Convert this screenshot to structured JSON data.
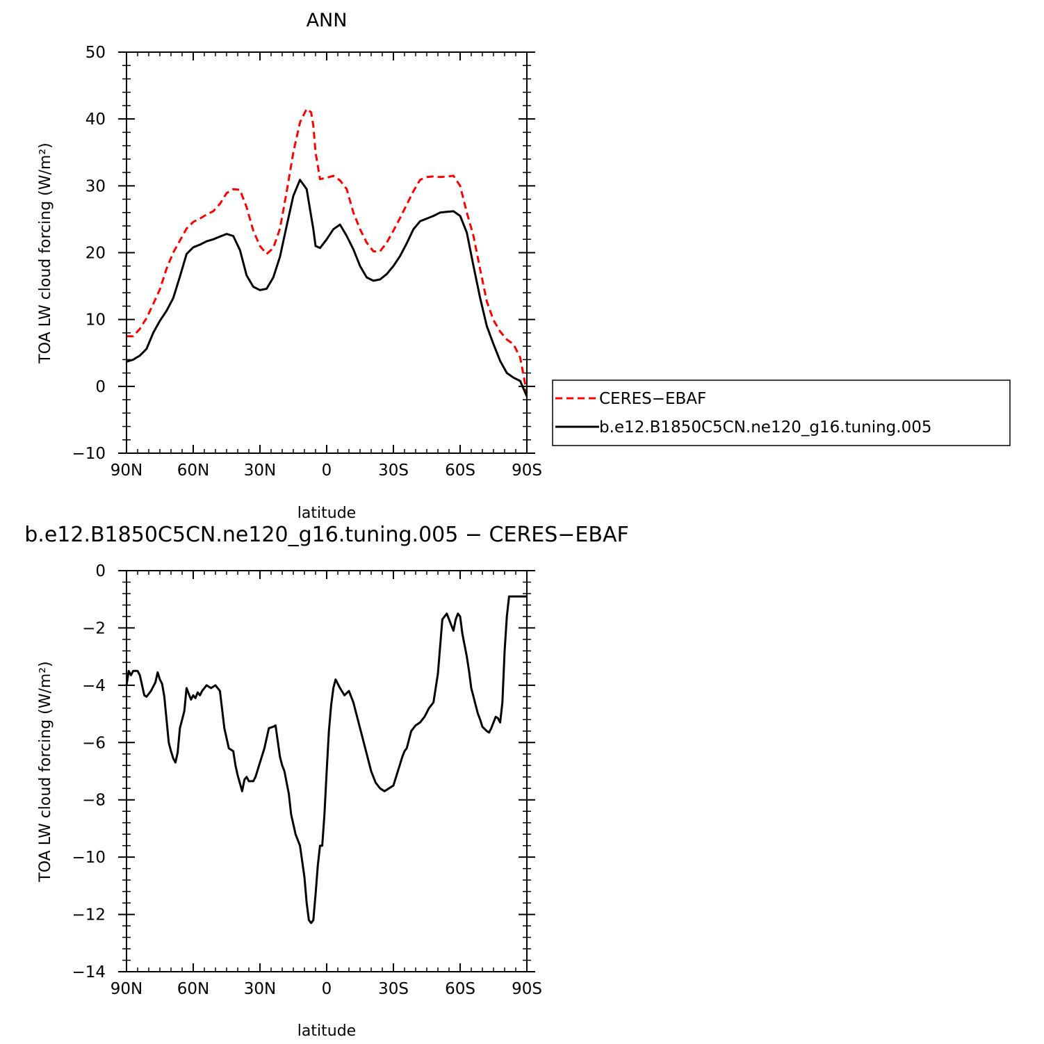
{
  "chart_data": [
    {
      "type": "line",
      "title": "ANN",
      "xlabel": "latitude",
      "ylabel": "TOA LW cloud forcing (W/m²)",
      "xlim": [
        90,
        -90
      ],
      "ylim": [
        -10,
        50
      ],
      "x_tick_labels": [
        "90N",
        "60N",
        "30N",
        "0",
        "30S",
        "60S",
        "90S"
      ],
      "y_tick_labels": [
        "−10",
        "0",
        "10",
        "20",
        "30",
        "40",
        "50"
      ],
      "grid": false,
      "legend": "right",
      "series": [
        {
          "name": "CERES−EBAF",
          "color": "#ff0000",
          "dash": "dashed",
          "x": [
            90,
            87,
            84,
            81,
            78,
            75,
            72,
            69,
            66,
            63,
            60,
            57,
            54,
            51,
            48,
            45,
            42,
            39,
            36,
            33,
            30,
            27,
            24,
            21,
            18,
            15,
            12,
            9,
            7,
            6,
            5,
            3,
            0,
            -3,
            -6,
            -9,
            -12,
            -15,
            -18,
            -21,
            -24,
            -27,
            -30,
            -33,
            -36,
            -39,
            -42,
            -45,
            -48,
            -51,
            -54,
            -57,
            -60,
            -63,
            -66,
            -69,
            -72,
            -75,
            -78,
            -81,
            -84,
            -87,
            -90
          ],
          "y": [
            7.5,
            7.5,
            8.6,
            10.2,
            12.3,
            14.5,
            17.6,
            20.0,
            21.8,
            23.6,
            24.6,
            25.1,
            25.7,
            26.2,
            27.3,
            28.9,
            29.5,
            29.4,
            26.8,
            23.3,
            21.0,
            19.8,
            20.7,
            23.6,
            29.1,
            35.0,
            39.5,
            41.5,
            41.0,
            39.0,
            35.0,
            31.0,
            31.2,
            31.5,
            30.8,
            29.5,
            26.0,
            23.5,
            21.5,
            20.2,
            20.2,
            21.5,
            23.3,
            25.2,
            27.2,
            29.2,
            30.9,
            31.3,
            31.4,
            31.3,
            31.4,
            31.5,
            30.0,
            26.0,
            22.5,
            17.5,
            12.7,
            9.9,
            8.2,
            7.0,
            6.3,
            4.3,
            -1.0
          ]
        },
        {
          "name": "b.e12.B1850C5CN.ne120_g16.tuning.005",
          "color": "#000000",
          "dash": "solid",
          "x": [
            90,
            87,
            84,
            81,
            78,
            75,
            72,
            69,
            66,
            63,
            60,
            57,
            54,
            51,
            48,
            45,
            42,
            39,
            36,
            33,
            30,
            27,
            24,
            21,
            18,
            15,
            12,
            9,
            7,
            6,
            5,
            3,
            0,
            -3,
            -6,
            -9,
            -12,
            -15,
            -18,
            -21,
            -24,
            -27,
            -30,
            -33,
            -36,
            -39,
            -42,
            -45,
            -48,
            -51,
            -54,
            -57,
            -60,
            -63,
            -66,
            -69,
            -72,
            -75,
            -78,
            -81,
            -84,
            -87,
            -90
          ],
          "y": [
            3.7,
            4.0,
            4.6,
            5.6,
            8.0,
            9.8,
            11.3,
            13.2,
            16.4,
            19.8,
            20.8,
            21.2,
            21.7,
            22.0,
            22.4,
            22.8,
            22.5,
            20.4,
            16.6,
            14.9,
            14.4,
            14.6,
            16.3,
            19.4,
            24.0,
            28.5,
            30.9,
            29.5,
            25.5,
            23.5,
            21.0,
            20.7,
            22.0,
            23.5,
            24.2,
            22.5,
            20.5,
            18.0,
            16.3,
            15.8,
            16.0,
            16.8,
            18.0,
            19.5,
            21.4,
            23.5,
            24.7,
            25.1,
            25.5,
            26.0,
            26.1,
            26.2,
            25.5,
            23.0,
            18.0,
            13.2,
            9.0,
            6.3,
            3.8,
            2.0,
            1.3,
            0.8,
            -1.5
          ]
        }
      ]
    },
    {
      "type": "line",
      "title": "b.e12.B1850C5CN.ne120_g16.tuning.005 − CERES−EBAF",
      "xlabel": "latitude",
      "ylabel": "TOA LW cloud forcing (W/m²)",
      "xlim": [
        90,
        -90
      ],
      "ylim": [
        -14,
        0
      ],
      "x_tick_labels": [
        "90N",
        "60N",
        "30N",
        "0",
        "30S",
        "60S",
        "90S"
      ],
      "y_tick_labels": [
        "−14",
        "−12",
        "−10",
        "−8",
        "−6",
        "−4",
        "−2",
        "0"
      ],
      "grid": false,
      "series": [
        {
          "color": "#000000",
          "dash": "solid",
          "x": [
            90,
            89,
            88,
            87,
            86,
            85,
            84,
            82,
            81,
            79,
            77,
            76,
            75,
            74,
            73,
            71,
            70,
            69,
            68,
            67,
            66,
            64,
            63,
            61,
            60,
            59,
            58,
            57,
            56,
            54,
            52,
            50,
            48,
            46,
            44,
            42,
            41,
            40,
            38,
            37,
            36,
            35,
            33,
            32,
            30,
            28,
            26,
            24,
            23,
            21,
            20,
            19,
            17,
            16,
            14,
            12,
            10,
            9,
            8,
            7,
            6,
            5,
            4,
            3,
            2,
            1,
            0,
            -1,
            -2,
            -3,
            -4,
            -6,
            -8,
            -10,
            -12,
            -14,
            -16,
            -18,
            -20,
            -22,
            -24,
            -26,
            -28,
            -30,
            -32,
            -34,
            -35,
            -36,
            -38,
            -40,
            -42,
            -44,
            -46,
            -48,
            -50,
            -52,
            -54,
            -56,
            -57,
            -58,
            -59,
            -60,
            -61,
            -62,
            -63,
            -64,
            -65,
            -66,
            -67,
            -68,
            -69,
            -70,
            -72,
            -73,
            -74,
            -75,
            -76,
            -77,
            -78,
            -79,
            -80,
            -81,
            -82,
            -83,
            -84,
            -85,
            -86,
            -87,
            -88,
            -89,
            -90
          ],
          "y": [
            -4.0,
            -3.5,
            -3.65,
            -3.5,
            -3.5,
            -3.5,
            -3.65,
            -4.35,
            -4.4,
            -4.2,
            -3.9,
            -3.55,
            -3.8,
            -3.95,
            -4.4,
            -6.0,
            -6.3,
            -6.55,
            -6.7,
            -6.35,
            -5.5,
            -4.9,
            -4.1,
            -4.5,
            -4.35,
            -4.45,
            -4.25,
            -4.35,
            -4.2,
            -4.0,
            -4.1,
            -4.0,
            -4.2,
            -5.5,
            -6.2,
            -6.3,
            -6.8,
            -7.15,
            -7.7,
            -7.3,
            -7.2,
            -7.35,
            -7.35,
            -7.2,
            -6.7,
            -6.2,
            -5.5,
            -5.45,
            -5.4,
            -6.5,
            -6.8,
            -7.0,
            -7.8,
            -8.5,
            -9.2,
            -9.6,
            -10.7,
            -11.6,
            -12.2,
            -12.3,
            -12.2,
            -11.3,
            -10.3,
            -9.6,
            -9.6,
            -8.5,
            -7.0,
            -5.6,
            -4.7,
            -4.1,
            -3.8,
            -4.1,
            -4.35,
            -4.2,
            -4.6,
            -5.2,
            -5.8,
            -6.4,
            -7.0,
            -7.4,
            -7.6,
            -7.7,
            -7.6,
            -7.5,
            -7.0,
            -6.5,
            -6.3,
            -6.2,
            -5.6,
            -5.4,
            -5.3,
            -5.1,
            -4.8,
            -4.6,
            -3.6,
            -1.7,
            -1.5,
            -1.9,
            -2.1,
            -1.7,
            -1.5,
            -1.6,
            -2.2,
            -2.6,
            -3.0,
            -3.5,
            -4.1,
            -4.4,
            -4.7,
            -5.0,
            -5.2,
            -5.45,
            -5.6,
            -5.65,
            -5.5,
            -5.3,
            -5.1,
            -5.15,
            -5.3,
            -4.6,
            -2.8,
            -1.6,
            -0.9,
            -0.9,
            -0.9,
            -0.9,
            -0.9,
            -0.9,
            -0.9,
            -0.9,
            -0.9
          ]
        }
      ]
    }
  ]
}
